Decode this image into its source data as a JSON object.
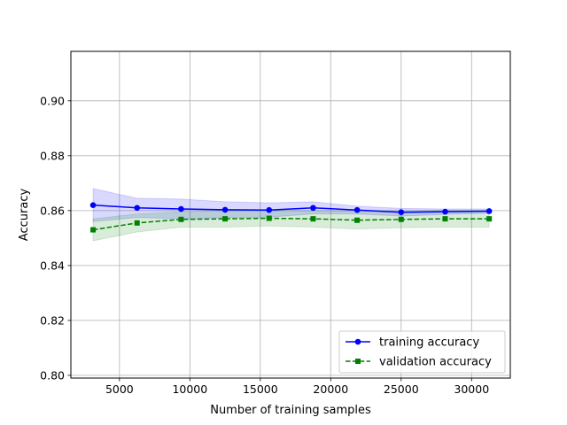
{
  "chart_data": {
    "type": "line",
    "xlabel": "Number of training samples",
    "ylabel": "Accuracy",
    "xlim": [
      1550,
      32750
    ],
    "ylim": [
      0.799,
      0.918
    ],
    "xticks": [
      5000,
      10000,
      15000,
      20000,
      25000,
      30000
    ],
    "xtick_labels": [
      "5000",
      "10000",
      "15000",
      "20000",
      "25000",
      "30000"
    ],
    "yticks": [
      0.8,
      0.82,
      0.84,
      0.86,
      0.88,
      0.9
    ],
    "ytick_labels": [
      "0.80",
      "0.82",
      "0.84",
      "0.86",
      "0.88",
      "0.90"
    ],
    "grid": true,
    "legend_position": "lower-right",
    "x": [
      3125,
      6250,
      9375,
      12500,
      15625,
      18750,
      21875,
      25000,
      28125,
      31250
    ],
    "series": [
      {
        "name": "training accuracy",
        "color": "#0000ff",
        "marker": "circle",
        "linestyle": "solid",
        "values": [
          0.862,
          0.861,
          0.8606,
          0.8603,
          0.8602,
          0.861,
          0.8602,
          0.8594,
          0.8596,
          0.8598
        ],
        "upper": [
          0.868,
          0.8645,
          0.8642,
          0.8632,
          0.8628,
          0.8632,
          0.8616,
          0.8608,
          0.8606,
          0.8606
        ],
        "lower": [
          0.856,
          0.8575,
          0.857,
          0.8574,
          0.8576,
          0.8588,
          0.8588,
          0.858,
          0.8586,
          0.859
        ]
      },
      {
        "name": "validation accuracy",
        "color": "#008000",
        "marker": "square",
        "linestyle": "dashed",
        "values": [
          0.853,
          0.8555,
          0.8568,
          0.857,
          0.8572,
          0.857,
          0.8565,
          0.8568,
          0.857,
          0.857
        ],
        "upper": [
          0.857,
          0.8588,
          0.8596,
          0.86,
          0.86,
          0.86,
          0.8597,
          0.8598,
          0.86,
          0.86
        ],
        "lower": [
          0.849,
          0.8522,
          0.854,
          0.854,
          0.8544,
          0.854,
          0.8533,
          0.8538,
          0.854,
          0.854
        ]
      }
    ]
  }
}
